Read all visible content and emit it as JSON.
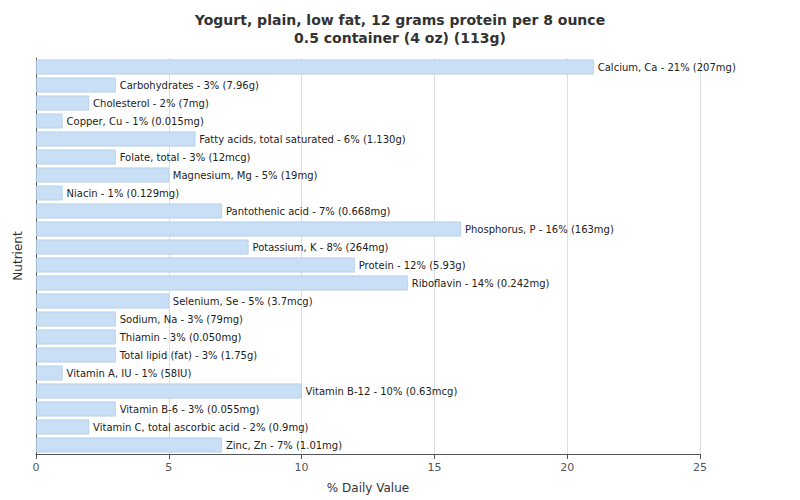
{
  "chart_data": {
    "type": "bar",
    "orientation": "horizontal",
    "title": "Yogurt, plain, low fat, 12 grams protein per 8 ounce\n0.5 container (4 oz) (113g)",
    "xlabel": "% Daily Value",
    "ylabel": "Nutrient",
    "categories": [
      "Calcium, Ca - 21% (207mg)",
      "Carbohydrates - 3% (7.96g)",
      "Cholesterol - 2% (7mg)",
      "Copper, Cu - 1% (0.015mg)",
      "Fatty acids, total saturated - 6% (1.130g)",
      "Folate, total - 3% (12mcg)",
      "Magnesium, Mg - 5% (19mg)",
      "Niacin - 1% (0.129mg)",
      "Pantothenic acid - 7% (0.668mg)",
      "Phosphorus, P - 16% (163mg)",
      "Potassium, K - 8% (264mg)",
      "Protein - 12% (5.93g)",
      "Riboflavin - 14% (0.242mg)",
      "Selenium, Se - 5% (3.7mcg)",
      "Sodium, Na - 3% (79mg)",
      "Thiamin - 3% (0.050mg)",
      "Total lipid (fat) - 3% (1.75g)",
      "Vitamin A, IU - 1% (58IU)",
      "Vitamin B-12 - 10% (0.63mcg)",
      "Vitamin B-6 - 3% (0.055mg)",
      "Vitamin C, total ascorbic acid - 2% (0.9mg)",
      "Zinc, Zn - 7% (1.01mg)"
    ],
    "values": [
      21,
      3,
      2,
      1,
      6,
      3,
      5,
      1,
      7,
      16,
      8,
      12,
      14,
      5,
      3,
      3,
      3,
      1,
      10,
      3,
      2,
      7
    ],
    "color": "#c8dff5",
    "xlim": [
      0,
      25
    ],
    "xticks": [
      0,
      5,
      10,
      15,
      20,
      25
    ],
    "grid": true,
    "tick_labels": "x"
  }
}
